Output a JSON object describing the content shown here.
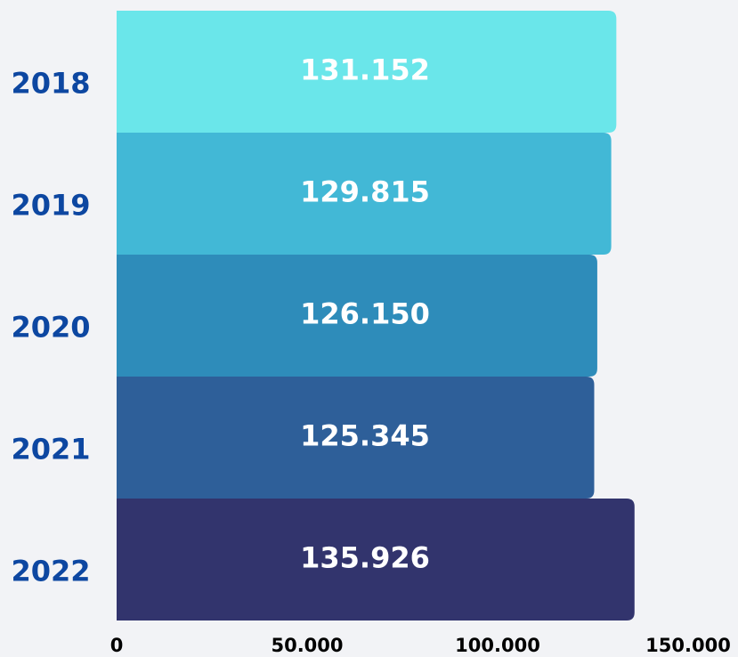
{
  "chart_data": {
    "type": "bar",
    "orientation": "horizontal",
    "categories": [
      "2018",
      "2019",
      "2020",
      "2021",
      "2022"
    ],
    "values": [
      131152,
      129815,
      126150,
      125345,
      135926
    ],
    "value_labels": [
      "131.152",
      "129.815",
      "126.150",
      "125.345",
      "135.926"
    ],
    "colors": [
      "#6ae6ea",
      "#42b8d6",
      "#2e8cba",
      "#2e5f99",
      "#32346d"
    ],
    "xlim": [
      0,
      150000
    ],
    "xticks": [
      0,
      {
        "value": 50000,
        "label": "50.000"
      },
      {
        "value": 100000,
        "label": "100.000"
      },
      {
        "value": 150000,
        "label": "150.000"
      }
    ]
  }
}
